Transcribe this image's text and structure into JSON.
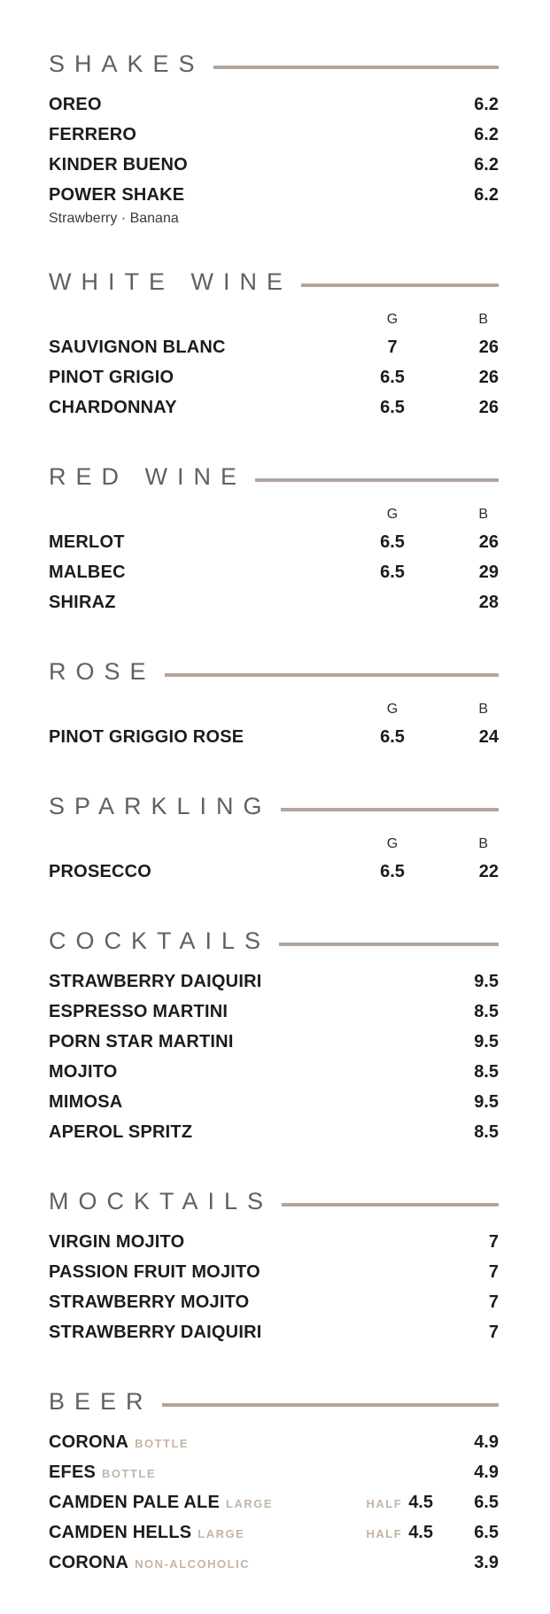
{
  "colors": {
    "header_grey": "#606060",
    "rule_tan": "#b3a59c",
    "item_black": "#1c1c1c",
    "sublabel_tan": "#c4b4a6",
    "background": "#ffffff"
  },
  "labels": {
    "glass_column": "G",
    "bottle_column": "B",
    "half": "HALF"
  },
  "sections": [
    {
      "title": "SHAKES",
      "type": "simple",
      "items": [
        {
          "name": "OREO",
          "price": "6.2"
        },
        {
          "name": "FERRERO",
          "price": "6.2"
        },
        {
          "name": "KINDER BUENO",
          "price": "6.2"
        },
        {
          "name": "POWER SHAKE",
          "price": "6.2",
          "note": "Strawberry · Banana"
        }
      ]
    },
    {
      "title": "WHITE WINE",
      "type": "gb",
      "items": [
        {
          "name": "SAUVIGNON BLANC",
          "g": "7",
          "b": "26"
        },
        {
          "name": "PINOT GRIGIO",
          "g": "6.5",
          "b": "26"
        },
        {
          "name": "CHARDONNAY",
          "g": "6.5",
          "b": "26"
        }
      ]
    },
    {
      "title": "RED WINE",
      "type": "gb",
      "items": [
        {
          "name": "MERLOT",
          "g": "6.5",
          "b": "26"
        },
        {
          "name": "MALBEC",
          "g": "6.5",
          "b": "29"
        },
        {
          "name": "SHIRAZ",
          "g": "",
          "b": "28"
        }
      ]
    },
    {
      "title": "ROSE",
      "type": "gb",
      "items": [
        {
          "name": "PINOT GRIGGIO ROSE",
          "g": "6.5",
          "b": "24"
        }
      ]
    },
    {
      "title": "SPARKLING",
      "type": "gb",
      "items": [
        {
          "name": "PROSECCO",
          "g": "6.5",
          "b": "22"
        }
      ]
    },
    {
      "title": "COCKTAILS",
      "type": "simple",
      "items": [
        {
          "name": "STRAWBERRY DAIQUIRI",
          "price": "9.5"
        },
        {
          "name": "ESPRESSO MARTINI",
          "price": "8.5"
        },
        {
          "name": "PORN STAR MARTINI",
          "price": "9.5"
        },
        {
          "name": "MOJITO",
          "price": "8.5"
        },
        {
          "name": "MIMOSA",
          "price": "9.5"
        },
        {
          "name": "APEROL SPRITZ",
          "price": "8.5"
        }
      ]
    },
    {
      "title": "MOCKTAILS",
      "type": "simple",
      "items": [
        {
          "name": "VIRGIN MOJITO",
          "price": "7"
        },
        {
          "name": "PASSION FRUIT MOJITO",
          "price": "7"
        },
        {
          "name": "STRAWBERRY MOJITO",
          "price": "7"
        },
        {
          "name": "STRAWBERRY DAIQUIRI",
          "price": "7"
        }
      ]
    },
    {
      "title": "BEER",
      "type": "beer",
      "items": [
        {
          "name": "CORONA",
          "tag": "BOTTLE",
          "price": "4.9"
        },
        {
          "name": "EFES",
          "tag": "BOTTLE",
          "price": "4.9"
        },
        {
          "name": "CAMDEN PALE ALE",
          "tag": "LARGE",
          "half": "4.5",
          "price": "6.5"
        },
        {
          "name": "CAMDEN HELLS",
          "tag": "LARGE",
          "half": "4.5",
          "price": "6.5"
        },
        {
          "name": "CORONA",
          "tag": "NON-ALCOHOLIC",
          "price": "3.9"
        }
      ]
    }
  ]
}
